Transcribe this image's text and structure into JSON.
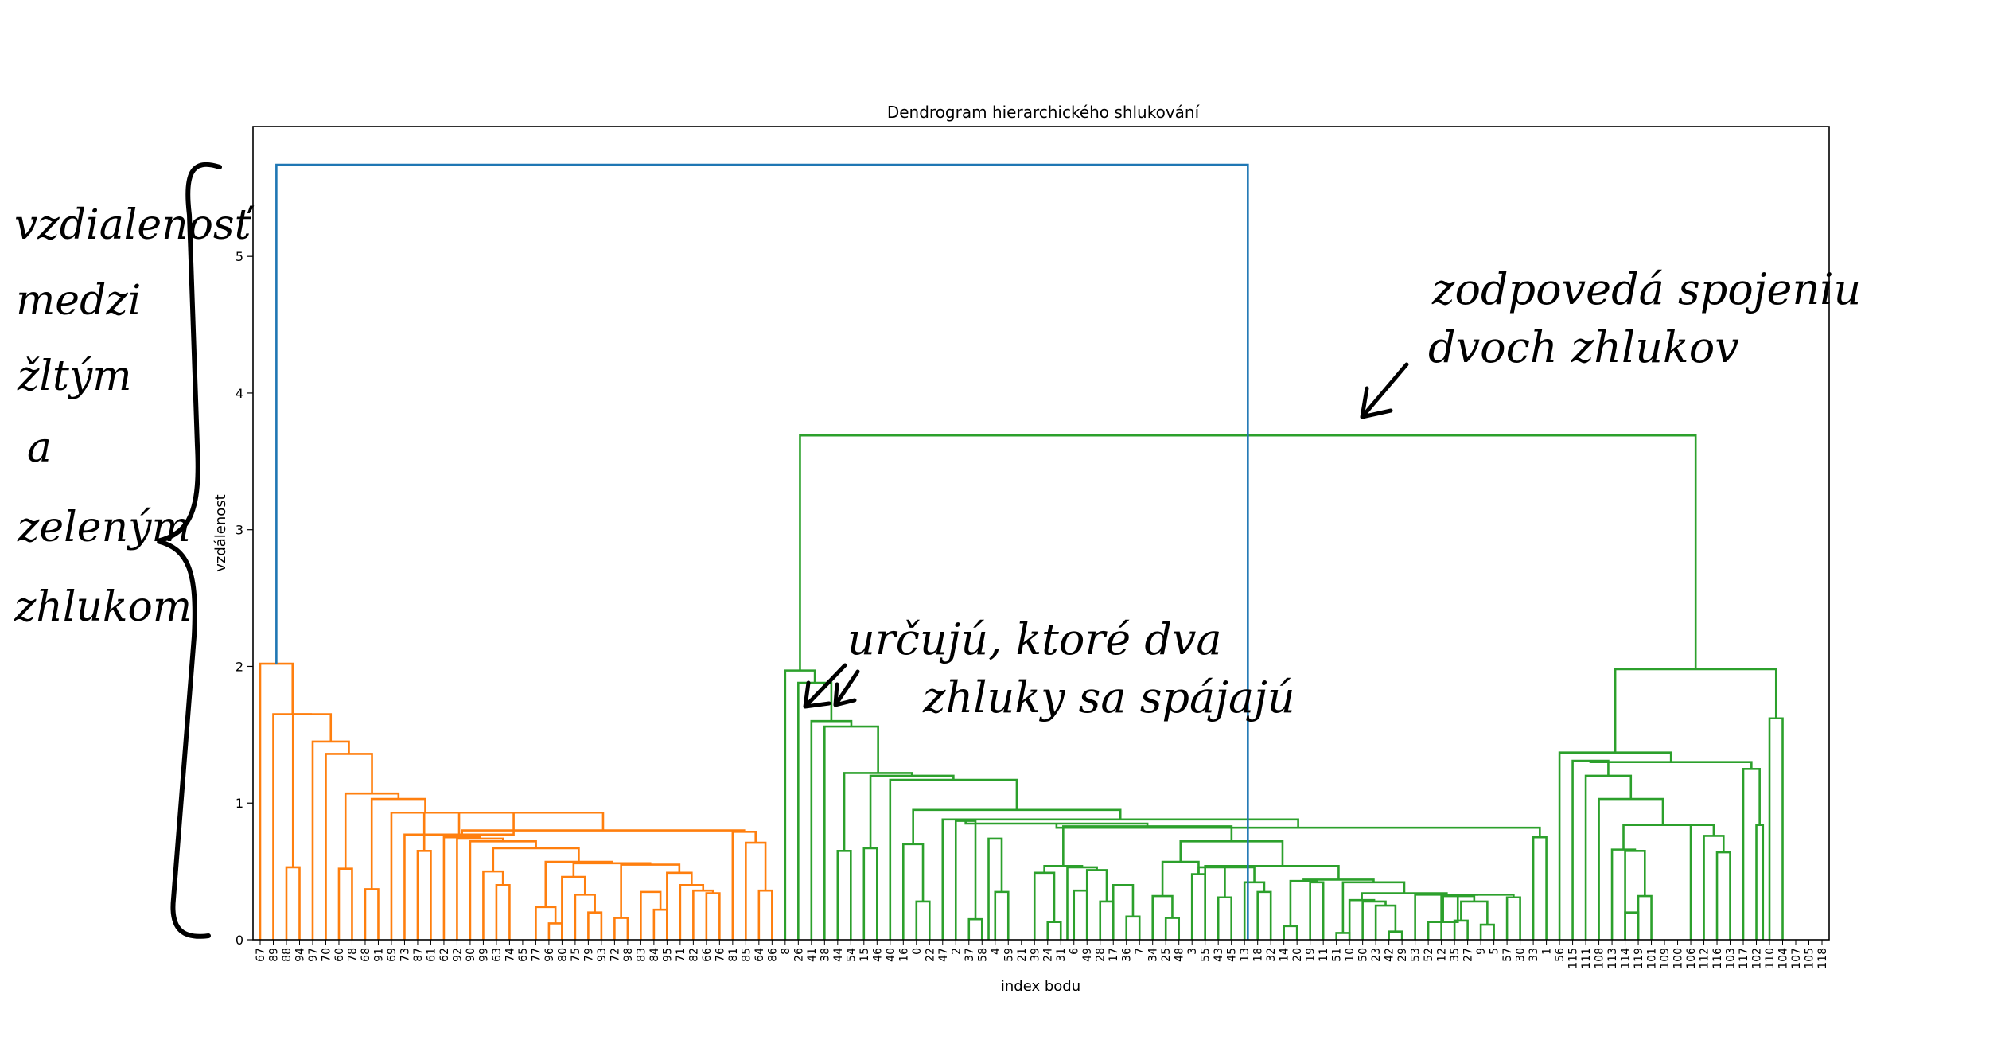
{
  "chart_data": {
    "type": "dendrogram",
    "title": "Dendrogram hierarchického shlukování",
    "xlabel": "index bodu",
    "ylabel": "vzdálenost",
    "ylim": [
      0,
      5.95
    ],
    "yticks": [
      0,
      1,
      2,
      3,
      4,
      5
    ],
    "colors": {
      "orange": "#ff7f0e",
      "green": "#2ca02c",
      "blue": "#1f77b4"
    },
    "leaf_order": [
      "67",
      "89",
      "88",
      "94",
      "97",
      "70",
      "60",
      "78",
      "68",
      "91",
      "69",
      "73",
      "87",
      "61",
      "62",
      "92",
      "90",
      "99",
      "63",
      "74",
      "65",
      "77",
      "96",
      "80",
      "75",
      "79",
      "93",
      "72",
      "98",
      "83",
      "84",
      "95",
      "71",
      "82",
      "66",
      "76",
      "81",
      "85",
      "64",
      "86",
      "8",
      "26",
      "41",
      "38",
      "44",
      "54",
      "15",
      "46",
      "40",
      "16",
      "0",
      "22",
      "47",
      "2",
      "37",
      "58",
      "4",
      "59",
      "21",
      "39",
      "24",
      "31",
      "6",
      "49",
      "28",
      "17",
      "36",
      "7",
      "34",
      "25",
      "48",
      "3",
      "55",
      "43",
      "45",
      "13",
      "18",
      "32",
      "14",
      "20",
      "19",
      "11",
      "51",
      "10",
      "50",
      "23",
      "42",
      "29",
      "53",
      "52",
      "12",
      "35",
      "27",
      "9",
      "5",
      "57",
      "30",
      "33",
      "1",
      "56",
      "115",
      "111",
      "108",
      "113",
      "114",
      "119",
      "101",
      "109",
      "100",
      "106",
      "112",
      "116",
      "103",
      "117",
      "102",
      "110",
      "104",
      "107",
      "105",
      "118"
    ],
    "merges": [
      {
        "x1": 104,
        "x2": 105,
        "h": 0.2,
        "c": "green"
      },
      {
        "x1": 111,
        "x2": 112,
        "h": 0.64,
        "c": "green"
      },
      {
        "x1": 110,
        "x2": 111.5,
        "h": 0.76,
        "c": "green"
      },
      {
        "x1": 105,
        "x2": 106,
        "h": 0.32,
        "c": "green"
      },
      {
        "x1": 104,
        "x2": 105.5,
        "h": 0.65,
        "c": "green"
      },
      {
        "x1": 109,
        "x2": 110.75,
        "h": 0.84,
        "c": "green"
      },
      {
        "x1": 103,
        "x2": 104.75,
        "h": 0.66,
        "c": "green"
      },
      {
        "x1": 103.875,
        "x2": 109.875,
        "h": 0.84,
        "c": "green"
      },
      {
        "x1": 102,
        "x2": 106.875,
        "h": 1.03,
        "c": "green"
      },
      {
        "x1": 114,
        "x2": 114.5,
        "h": 0.84,
        "c": "green"
      },
      {
        "x1": 113,
        "x2": 114.25,
        "h": 1.25,
        "c": "green"
      },
      {
        "x1": 115,
        "x2": 116,
        "h": 1.62,
        "c": "green"
      },
      {
        "x1": 101,
        "x2": 104.4375,
        "h": 1.2,
        "c": "green"
      },
      {
        "x1": 100,
        "x2": 102.71875,
        "h": 1.31,
        "c": "green"
      },
      {
        "x1": 101.359375,
        "x2": 113.625,
        "h": 1.3,
        "c": "green"
      },
      {
        "x1": 99,
        "x2": 107.4921875,
        "h": 1.37,
        "c": "green"
      },
      {
        "x1": 103.24609375,
        "x2": 115.5,
        "h": 1.98,
        "c": "green"
      },
      {
        "x1": 99,
        "x2": 99,
        "h": 0.0,
        "c": "green"
      },
      {
        "x1": 97,
        "x2": 97,
        "h": 0.0,
        "c": "green"
      },
      {
        "x1": 91,
        "x2": 92,
        "h": 0.14,
        "c": "green"
      },
      {
        "x1": 93,
        "x2": 94,
        "h": 0.11,
        "c": "green"
      },
      {
        "x1": 91.5,
        "x2": 93.5,
        "h": 0.28,
        "c": "green"
      },
      {
        "x1": 90,
        "x2": 92.5,
        "h": 0.32,
        "c": "green"
      },
      {
        "x1": 89,
        "x2": 91.25,
        "h": 0.13,
        "c": "green"
      },
      {
        "x1": 95,
        "x2": 96,
        "h": 0.31,
        "c": "green"
      },
      {
        "x1": 90.125,
        "x2": 95.5,
        "h": 0.33,
        "c": "green"
      },
      {
        "x1": 86,
        "x2": 87,
        "h": 0.06,
        "c": "green"
      },
      {
        "x1": 85,
        "x2": 86.5,
        "h": 0.25,
        "c": "green"
      },
      {
        "x1": 84,
        "x2": 85.75,
        "h": 0.28,
        "c": "green"
      },
      {
        "x1": 83,
        "x2": 84.875,
        "h": 0.29,
        "c": "green"
      },
      {
        "x1": 88,
        "x2": 92.8125,
        "h": 0.33,
        "c": "green"
      },
      {
        "x1": 83.9375,
        "x2": 90.40625,
        "h": 0.34,
        "c": "green"
      },
      {
        "x1": 82,
        "x2": 83,
        "h": 0.05,
        "c": "green"
      },
      {
        "x1": 80,
        "x2": 81,
        "h": 0.42,
        "c": "green"
      },
      {
        "x1": 78,
        "x2": 79,
        "h": 0.1,
        "c": "green"
      },
      {
        "x1": 78.5,
        "x2": 80.5,
        "h": 0.43,
        "c": "green"
      },
      {
        "x1": 82.5,
        "x2": 87.171875,
        "h": 0.42,
        "c": "green"
      },
      {
        "x1": 79.5,
        "x2": 84.8359375,
        "h": 0.44,
        "c": "green"
      },
      {
        "x1": 76,
        "x2": 77,
        "h": 0.35,
        "c": "green"
      },
      {
        "x1": 75,
        "x2": 76.5,
        "h": 0.42,
        "c": "green"
      },
      {
        "x1": 73,
        "x2": 74,
        "h": 0.31,
        "c": "green"
      },
      {
        "x1": 72,
        "x2": 73.5,
        "h": 0.54,
        "c": "green"
      },
      {
        "x1": 71,
        "x2": 72,
        "h": 0.48,
        "c": "green"
      },
      {
        "x1": 71.5,
        "x2": 75.75,
        "h": 0.53,
        "c": "green"
      },
      {
        "x1": 73.625,
        "x2": 82.16796875,
        "h": 0.54,
        "c": "green"
      },
      {
        "x1": 69,
        "x2": 70,
        "h": 0.16,
        "c": "green"
      },
      {
        "x1": 68,
        "x2": 69.5,
        "h": 0.32,
        "c": "green"
      },
      {
        "x1": 68.75,
        "x2": 71.5,
        "h": 0.57,
        "c": "green"
      },
      {
        "x1": 66,
        "x2": 67,
        "h": 0.17,
        "c": "green"
      },
      {
        "x1": 65,
        "x2": 66.5,
        "h": 0.4,
        "c": "green"
      },
      {
        "x1": 64,
        "x2": 65,
        "h": 0.28,
        "c": "green"
      },
      {
        "x1": 63,
        "x2": 64.5,
        "h": 0.51,
        "c": "green"
      },
      {
        "x1": 62,
        "x2": 63,
        "h": 0.36,
        "c": "green"
      },
      {
        "x1": 60,
        "x2": 61,
        "h": 0.13,
        "c": "green"
      },
      {
        "x1": 59,
        "x2": 60.5,
        "h": 0.49,
        "c": "green"
      },
      {
        "x1": 61.5,
        "x2": 63.75,
        "h": 0.53,
        "c": "green"
      },
      {
        "x1": 59.75,
        "x2": 62.625,
        "h": 0.54,
        "c": "green"
      },
      {
        "x1": 56,
        "x2": 57,
        "h": 0.35,
        "c": "green"
      },
      {
        "x1": 54,
        "x2": 55,
        "h": 0.15,
        "c": "green"
      },
      {
        "x1": 55.5,
        "x2": 56.5,
        "h": 0.74,
        "c": "green"
      },
      {
        "x1": 53,
        "x2": 54.5,
        "h": 0.87,
        "c": "green"
      },
      {
        "x1": 70.125,
        "x2": 77.896484375,
        "h": 0.72,
        "c": "green"
      },
      {
        "x1": 61.1875,
        "x2": 74.0107421875,
        "h": 0.83,
        "c": "green"
      },
      {
        "x1": 53.75,
        "x2": 67.59912109375,
        "h": 0.85,
        "c": "green"
      },
      {
        "x1": 50,
        "x2": 51,
        "h": 0.28,
        "c": "green"
      },
      {
        "x1": 49,
        "x2": 50.5,
        "h": 0.7,
        "c": "green"
      },
      {
        "x1": 97,
        "x2": 98,
        "h": 0.75,
        "c": "green"
      },
      {
        "x1": 60.674560546875,
        "x2": 97.5,
        "h": 0.82,
        "c": "green"
      },
      {
        "x1": 52,
        "x2": 79.0872802734375,
        "h": 0.88,
        "c": "green"
      },
      {
        "x1": 49.75,
        "x2": 65.54364013671875,
        "h": 0.95,
        "c": "green"
      },
      {
        "x1": 46,
        "x2": 47,
        "h": 0.67,
        "c": "green"
      },
      {
        "x1": 44,
        "x2": 45,
        "h": 0.65,
        "c": "green"
      },
      {
        "x1": 48,
        "x2": 57.646820068359375,
        "h": 1.17,
        "c": "green"
      },
      {
        "x1": 46.5,
        "x2": 52.82341003417969,
        "h": 1.2,
        "c": "green"
      },
      {
        "x1": 44.5,
        "x2": 49.661705017089844,
        "h": 1.22,
        "c": "green"
      },
      {
        "x1": 43,
        "x2": 47.08085250854492,
        "h": 1.56,
        "c": "green"
      },
      {
        "x1": 42,
        "x2": 45.04042625427246,
        "h": 1.6,
        "c": "green"
      },
      {
        "x1": 41,
        "x2": 43.52021312713623,
        "h": 1.88,
        "c": "green"
      },
      {
        "x1": 40,
        "x2": 42.260106563568115,
        "h": 1.97,
        "c": "green"
      },
      {
        "x1": 41.13005328178406,
        "x2": 109.373046875,
        "h": 3.69,
        "c": "green"
      },
      {
        "x1": 22,
        "x2": 23,
        "h": 0.12,
        "c": "orange"
      },
      {
        "x1": 21,
        "x2": 22.5,
        "h": 0.24,
        "c": "orange"
      },
      {
        "x1": 25,
        "x2": 26,
        "h": 0.2,
        "c": "orange"
      },
      {
        "x1": 24,
        "x2": 25.5,
        "h": 0.33,
        "c": "orange"
      },
      {
        "x1": 23,
        "x2": 24.75,
        "h": 0.46,
        "c": "orange"
      },
      {
        "x1": 27,
        "x2": 28,
        "h": 0.16,
        "c": "orange"
      },
      {
        "x1": 30,
        "x2": 31,
        "h": 0.22,
        "c": "orange"
      },
      {
        "x1": 29,
        "x2": 30.5,
        "h": 0.35,
        "c": "orange"
      },
      {
        "x1": 34,
        "x2": 35,
        "h": 0.34,
        "c": "orange"
      },
      {
        "x1": 33,
        "x2": 34.5,
        "h": 0.36,
        "c": "orange"
      },
      {
        "x1": 32,
        "x2": 33.75,
        "h": 0.4,
        "c": "orange"
      },
      {
        "x1": 31,
        "x2": 32.875,
        "h": 0.49,
        "c": "orange"
      },
      {
        "x1": 27.5,
        "x2": 31.9375,
        "h": 0.55,
        "c": "orange"
      },
      {
        "x1": 23.875,
        "x2": 29.71875,
        "h": 0.56,
        "c": "orange"
      },
      {
        "x1": 21.75,
        "x2": 26.796875,
        "h": 0.57,
        "c": "orange"
      },
      {
        "x1": 18,
        "x2": 19,
        "h": 0.4,
        "c": "orange"
      },
      {
        "x1": 17,
        "x2": 18.5,
        "h": 0.5,
        "c": "orange"
      },
      {
        "x1": 17.75,
        "x2": 24.2734375,
        "h": 0.67,
        "c": "orange"
      },
      {
        "x1": 16,
        "x2": 21.01171875,
        "h": 0.72,
        "c": "orange"
      },
      {
        "x1": 15,
        "x2": 18.505859375,
        "h": 0.74,
        "c": "orange"
      },
      {
        "x1": 12,
        "x2": 13,
        "h": 0.65,
        "c": "orange"
      },
      {
        "x1": 14,
        "x2": 16.7529296875,
        "h": 0.75,
        "c": "orange"
      },
      {
        "x1": 38,
        "x2": 39,
        "h": 0.36,
        "c": "orange"
      },
      {
        "x1": 37,
        "x2": 38.5,
        "h": 0.71,
        "c": "orange"
      },
      {
        "x1": 36,
        "x2": 37.75,
        "h": 0.79,
        "c": "orange"
      },
      {
        "x1": 15.37646484375,
        "x2": 36.875,
        "h": 0.8,
        "c": "orange"
      },
      {
        "x1": 12.5,
        "x2": 26.125732421875,
        "h": 0.93,
        "c": "orange"
      },
      {
        "x1": 11,
        "x2": 19.3128662109375,
        "h": 0.77,
        "c": "orange"
      },
      {
        "x1": 10,
        "x2": 15.15643310546875,
        "h": 0.93,
        "c": "orange"
      },
      {
        "x1": 8,
        "x2": 9,
        "h": 0.37,
        "c": "orange"
      },
      {
        "x1": 8.5,
        "x2": 12.578216552734375,
        "h": 1.03,
        "c": "orange"
      },
      {
        "x1": 6,
        "x2": 7,
        "h": 0.52,
        "c": "orange"
      },
      {
        "x1": 6.5,
        "x2": 10.539108276367188,
        "h": 1.07,
        "c": "orange"
      },
      {
        "x1": 5,
        "x2": 8.519554138183594,
        "h": 1.36,
        "c": "orange"
      },
      {
        "x1": 2,
        "x2": 3,
        "h": 0.53,
        "c": "orange"
      },
      {
        "x1": 4,
        "x2": 6.759777069091797,
        "h": 1.45,
        "c": "orange"
      },
      {
        "x1": 2.5,
        "x2": 5.379888534545898,
        "h": 1.65,
        "c": "orange"
      },
      {
        "x1": 1,
        "x2": 3.939944267272949,
        "h": 1.65,
        "c": "orange"
      },
      {
        "x1": 0,
        "x2": 2.4699721336364746,
        "h": 2.02,
        "c": "orange"
      },
      {
        "x1": 1.2349860668182373,
        "x2": 75.25154507682747,
        "h": 5.67,
        "c": "blue"
      }
    ]
  },
  "annotations": {
    "left_bracket_lines": [
      "vzdialenosť",
      "medzi",
      "žltým",
      "a",
      "zeleným",
      "zhlukom"
    ],
    "top_right_lines": [
      "zodpovedá spojeniu",
      "dvoch zhlukov"
    ],
    "middle_lines": [
      "určujú, ktoré dva",
      "zhluky sa spájajú"
    ]
  }
}
